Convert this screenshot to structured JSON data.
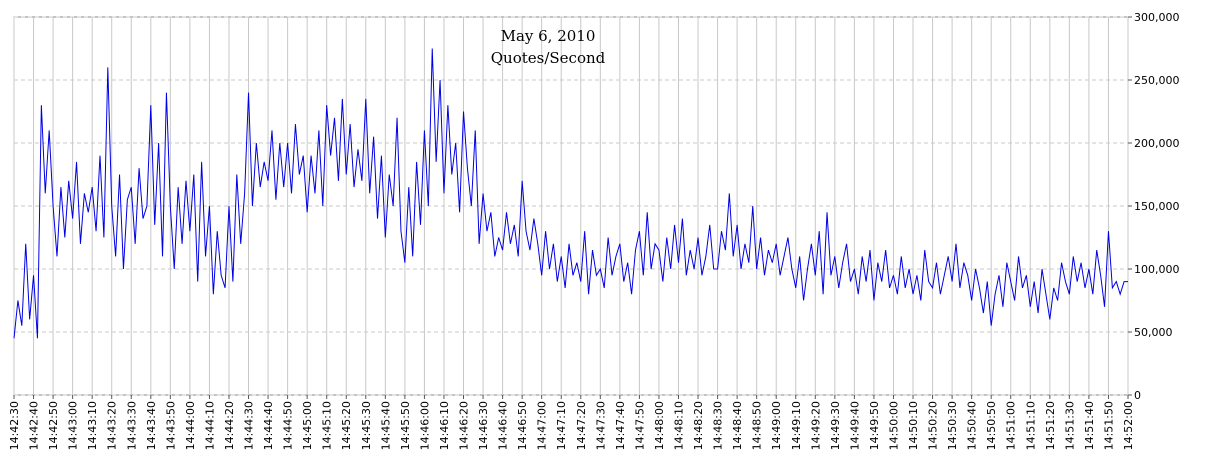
{
  "chart_data": {
    "type": "line",
    "title": "May 6, 2010",
    "subtitle": "Quotes/Second",
    "x": [
      "14:42:30",
      "14:42:32",
      "14:42:34",
      "14:42:36",
      "14:42:38",
      "14:42:40",
      "14:42:42",
      "14:42:44",
      "14:42:46",
      "14:42:48",
      "14:42:50",
      "14:42:52",
      "14:42:54",
      "14:42:56",
      "14:42:58",
      "14:43:00",
      "14:43:02",
      "14:43:04",
      "14:43:06",
      "14:43:08",
      "14:43:10",
      "14:43:12",
      "14:43:14",
      "14:43:16",
      "14:43:18",
      "14:43:20",
      "14:43:22",
      "14:43:24",
      "14:43:26",
      "14:43:28",
      "14:43:30",
      "14:43:32",
      "14:43:34",
      "14:43:36",
      "14:43:38",
      "14:43:40",
      "14:43:42",
      "14:43:44",
      "14:43:46",
      "14:43:48",
      "14:43:50",
      "14:43:52",
      "14:43:54",
      "14:43:56",
      "14:43:58",
      "14:44:00",
      "14:44:02",
      "14:44:04",
      "14:44:06",
      "14:44:08",
      "14:44:10",
      "14:44:12",
      "14:44:14",
      "14:44:16",
      "14:44:18",
      "14:44:20",
      "14:44:22",
      "14:44:24",
      "14:44:26",
      "14:44:28",
      "14:44:30",
      "14:44:32",
      "14:44:34",
      "14:44:36",
      "14:44:38",
      "14:44:40",
      "14:44:42",
      "14:44:44",
      "14:44:46",
      "14:44:48",
      "14:44:50",
      "14:44:52",
      "14:44:54",
      "14:44:56",
      "14:44:58",
      "14:45:00",
      "14:45:02",
      "14:45:04",
      "14:45:06",
      "14:45:08",
      "14:45:10",
      "14:45:12",
      "14:45:14",
      "14:45:16",
      "14:45:18",
      "14:45:20",
      "14:45:22",
      "14:45:24",
      "14:45:26",
      "14:45:28",
      "14:45:30",
      "14:45:32",
      "14:45:34",
      "14:45:36",
      "14:45:38",
      "14:45:40",
      "14:45:42",
      "14:45:44",
      "14:45:46",
      "14:45:48",
      "14:45:50",
      "14:45:52",
      "14:45:54",
      "14:45:56",
      "14:45:58",
      "14:46:00",
      "14:46:02",
      "14:46:04",
      "14:46:06",
      "14:46:08",
      "14:46:10",
      "14:46:12",
      "14:46:14",
      "14:46:16",
      "14:46:18",
      "14:46:20",
      "14:46:22",
      "14:46:24",
      "14:46:26",
      "14:46:28",
      "14:46:30",
      "14:46:32",
      "14:46:34",
      "14:46:36",
      "14:46:38",
      "14:46:40",
      "14:46:42",
      "14:46:44",
      "14:46:46",
      "14:46:48",
      "14:46:50",
      "14:46:52",
      "14:46:54",
      "14:46:56",
      "14:46:58",
      "14:47:00",
      "14:47:02",
      "14:47:04",
      "14:47:06",
      "14:47:08",
      "14:47:10",
      "14:47:12",
      "14:47:14",
      "14:47:16",
      "14:47:18",
      "14:47:20",
      "14:47:22",
      "14:47:24",
      "14:47:26",
      "14:47:28",
      "14:47:30",
      "14:47:32",
      "14:47:34",
      "14:47:36",
      "14:47:38",
      "14:47:40",
      "14:47:42",
      "14:47:44",
      "14:47:46",
      "14:47:48",
      "14:47:50",
      "14:47:52",
      "14:47:54",
      "14:47:56",
      "14:47:58",
      "14:48:00",
      "14:48:02",
      "14:48:04",
      "14:48:06",
      "14:48:08",
      "14:48:10",
      "14:48:12",
      "14:48:14",
      "14:48:16",
      "14:48:18",
      "14:48:20",
      "14:48:22",
      "14:48:24",
      "14:48:26",
      "14:48:28",
      "14:48:30",
      "14:48:32",
      "14:48:34",
      "14:48:36",
      "14:48:38",
      "14:48:40",
      "14:48:42",
      "14:48:44",
      "14:48:46",
      "14:48:48",
      "14:48:50",
      "14:48:52",
      "14:48:54",
      "14:48:56",
      "14:48:58",
      "14:49:00",
      "14:49:02",
      "14:49:04",
      "14:49:06",
      "14:49:08",
      "14:49:10",
      "14:49:12",
      "14:49:14",
      "14:49:16",
      "14:49:18",
      "14:49:20",
      "14:49:22",
      "14:49:24",
      "14:49:26",
      "14:49:28",
      "14:49:30",
      "14:49:32",
      "14:49:34",
      "14:49:36",
      "14:49:38",
      "14:49:40",
      "14:49:42",
      "14:49:44",
      "14:49:46",
      "14:49:48",
      "14:49:50",
      "14:49:52",
      "14:49:54",
      "14:49:56",
      "14:49:58",
      "14:50:00",
      "14:50:02",
      "14:50:04",
      "14:50:06",
      "14:50:08",
      "14:50:10",
      "14:50:12",
      "14:50:14",
      "14:50:16",
      "14:50:18",
      "14:50:20",
      "14:50:22",
      "14:50:24",
      "14:50:26",
      "14:50:28",
      "14:50:30",
      "14:50:32",
      "14:50:34",
      "14:50:36",
      "14:50:38",
      "14:50:40",
      "14:50:42",
      "14:50:44",
      "14:50:46",
      "14:50:48",
      "14:50:50",
      "14:50:52",
      "14:50:54",
      "14:50:56",
      "14:50:58",
      "14:51:00",
      "14:51:02",
      "14:51:04",
      "14:51:06",
      "14:51:08",
      "14:51:10",
      "14:51:12",
      "14:51:14",
      "14:51:16",
      "14:51:18",
      "14:51:20",
      "14:51:22",
      "14:51:24",
      "14:51:26",
      "14:51:28",
      "14:51:30",
      "14:51:32",
      "14:51:34",
      "14:51:36",
      "14:51:38",
      "14:51:40",
      "14:51:42",
      "14:51:44",
      "14:51:46",
      "14:51:48",
      "14:51:50",
      "14:51:52",
      "14:51:54",
      "14:51:56",
      "14:51:58",
      "14:52:00"
    ],
    "series": [
      {
        "color": "#0000e6",
        "values": [
          45000,
          75000,
          55000,
          120000,
          60000,
          95000,
          45000,
          230000,
          160000,
          210000,
          150000,
          110000,
          165000,
          125000,
          170000,
          140000,
          185000,
          120000,
          160000,
          145000,
          165000,
          130000,
          190000,
          125000,
          260000,
          150000,
          110000,
          175000,
          100000,
          155000,
          165000,
          120000,
          180000,
          140000,
          150000,
          230000,
          135000,
          200000,
          110000,
          240000,
          150000,
          100000,
          165000,
          120000,
          170000,
          130000,
          175000,
          90000,
          185000,
          110000,
          150000,
          80000,
          130000,
          95000,
          85000,
          150000,
          90000,
          175000,
          120000,
          160000,
          240000,
          150000,
          200000,
          165000,
          185000,
          170000,
          210000,
          155000,
          200000,
          165000,
          200000,
          160000,
          215000,
          175000,
          190000,
          145000,
          190000,
          160000,
          210000,
          150000,
          230000,
          190000,
          220000,
          170000,
          235000,
          175000,
          215000,
          165000,
          195000,
          170000,
          235000,
          160000,
          205000,
          140000,
          190000,
          125000,
          175000,
          150000,
          220000,
          130000,
          105000,
          165000,
          110000,
          185000,
          135000,
          210000,
          150000,
          275000,
          185000,
          250000,
          160000,
          230000,
          175000,
          200000,
          145000,
          225000,
          180000,
          150000,
          210000,
          120000,
          160000,
          130000,
          145000,
          110000,
          125000,
          115000,
          145000,
          120000,
          135000,
          110000,
          170000,
          130000,
          115000,
          140000,
          120000,
          95000,
          130000,
          100000,
          120000,
          90000,
          110000,
          85000,
          120000,
          95000,
          105000,
          90000,
          130000,
          80000,
          115000,
          95000,
          100000,
          85000,
          125000,
          95000,
          110000,
          120000,
          90000,
          105000,
          80000,
          115000,
          130000,
          95000,
          145000,
          100000,
          120000,
          115000,
          90000,
          125000,
          100000,
          135000,
          105000,
          140000,
          95000,
          115000,
          100000,
          125000,
          95000,
          110000,
          135000,
          100000,
          100000,
          130000,
          115000,
          160000,
          110000,
          135000,
          100000,
          120000,
          105000,
          150000,
          100000,
          125000,
          95000,
          115000,
          105000,
          120000,
          95000,
          110000,
          125000,
          100000,
          85000,
          110000,
          75000,
          100000,
          120000,
          95000,
          130000,
          80000,
          145000,
          95000,
          110000,
          85000,
          105000,
          120000,
          90000,
          100000,
          80000,
          110000,
          90000,
          115000,
          75000,
          105000,
          90000,
          115000,
          85000,
          95000,
          80000,
          110000,
          85000,
          100000,
          80000,
          95000,
          75000,
          115000,
          90000,
          85000,
          105000,
          80000,
          95000,
          110000,
          90000,
          120000,
          85000,
          105000,
          95000,
          75000,
          100000,
          85000,
          65000,
          90000,
          55000,
          80000,
          95000,
          70000,
          105000,
          90000,
          75000,
          110000,
          85000,
          95000,
          70000,
          90000,
          65000,
          100000,
          80000,
          60000,
          85000,
          75000,
          105000,
          90000,
          80000,
          110000,
          90000,
          105000,
          85000,
          100000,
          80000,
          115000,
          95000,
          70000,
          130000,
          85000,
          90000,
          80000,
          90000,
          90000
        ]
      }
    ],
    "xlim": [
      "14:42:30",
      "14:52:00"
    ],
    "xticks": [
      "14:42:30",
      "14:42:40",
      "14:42:50",
      "14:43:00",
      "14:43:10",
      "14:43:20",
      "14:43:30",
      "14:43:40",
      "14:43:50",
      "14:44:00",
      "14:44:10",
      "14:44:20",
      "14:44:30",
      "14:44:40",
      "14:44:50",
      "14:45:00",
      "14:45:10",
      "14:45:20",
      "14:45:30",
      "14:45:40",
      "14:45:50",
      "14:46:00",
      "14:46:10",
      "14:46:20",
      "14:46:30",
      "14:46:40",
      "14:46:50",
      "14:47:00",
      "14:47:10",
      "14:47:20",
      "14:47:30",
      "14:47:40",
      "14:47:50",
      "14:48:00",
      "14:48:10",
      "14:48:20",
      "14:48:30",
      "14:48:40",
      "14:48:50",
      "14:49:00",
      "14:49:10",
      "14:49:20",
      "14:49:30",
      "14:49:40",
      "14:49:50",
      "14:50:00",
      "14:50:10",
      "14:50:20",
      "14:50:30",
      "14:50:40",
      "14:50:50",
      "14:51:00",
      "14:51:10",
      "14:51:20",
      "14:51:30",
      "14:51:40",
      "14:51:50",
      "14:52:00"
    ],
    "ylim": [
      0,
      300000
    ],
    "yticks": [
      0,
      {
        "value": 50000,
        "label": "50,000"
      },
      {
        "value": 100000,
        "label": "100,000"
      },
      {
        "value": 150000,
        "label": "150,000"
      },
      {
        "value": 200000,
        "label": "200,000"
      },
      {
        "value": 250000,
        "label": "250,000"
      },
      {
        "value": 300000,
        "label": "300,000"
      }
    ],
    "grid": true
  }
}
